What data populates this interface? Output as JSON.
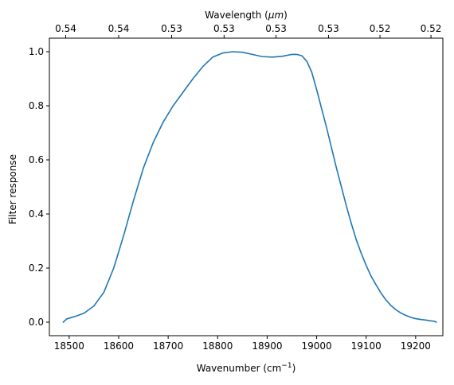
{
  "chart_data": {
    "type": "line",
    "title": "",
    "xlabel": "Wavenumber (cm",
    "xlabel_sup": "−1",
    "xlabel_end": ")",
    "ylabel": "Filter response",
    "top_xlabel_prefix": "Wavelength (",
    "top_xlabel_unit": "μm",
    "top_xlabel_suffix": ")",
    "xlim": [
      18460,
      19255
    ],
    "ylim": [
      -0.05,
      1.05
    ],
    "grid": false,
    "legend": "none",
    "x_ticks": [
      {
        "value": 18500,
        "label": "18500"
      },
      {
        "value": 18600,
        "label": "18600"
      },
      {
        "value": 18700,
        "label": "18700"
      },
      {
        "value": 18800,
        "label": "18800"
      },
      {
        "value": 18900,
        "label": "18900"
      },
      {
        "value": 19000,
        "label": "19000"
      },
      {
        "value": 19100,
        "label": "19100"
      },
      {
        "value": 19200,
        "label": "19200"
      }
    ],
    "y_ticks": [
      {
        "value": 0.0,
        "label": "0.0"
      },
      {
        "value": 0.2,
        "label": "0.2"
      },
      {
        "value": 0.4,
        "label": "0.4"
      },
      {
        "value": 0.6,
        "label": "0.6"
      },
      {
        "value": 0.8,
        "label": "0.8"
      },
      {
        "value": 1.0,
        "label": "1.0"
      }
    ],
    "top_x_ticks": [
      {
        "value": 18493,
        "label": "0.54"
      },
      {
        "value": 18600,
        "label": "0.54"
      },
      {
        "value": 18707,
        "label": "0.53"
      },
      {
        "value": 18813,
        "label": "0.53"
      },
      {
        "value": 18918,
        "label": "0.53"
      },
      {
        "value": 19024,
        "label": "0.53"
      },
      {
        "value": 19128,
        "label": "0.52"
      },
      {
        "value": 19231,
        "label": "0.52"
      }
    ],
    "series": [
      {
        "color": "#1f77b4",
        "x": [
          18488,
          18495,
          18510,
          18530,
          18550,
          18570,
          18590,
          18610,
          18630,
          18650,
          18670,
          18690,
          18710,
          18730,
          18750,
          18770,
          18790,
          18810,
          18830,
          18850,
          18870,
          18890,
          18910,
          18930,
          18950,
          18960,
          18970,
          18980,
          18990,
          19000,
          19010,
          19020,
          19030,
          19040,
          19050,
          19060,
          19070,
          19080,
          19090,
          19100,
          19110,
          19120,
          19130,
          19140,
          19150,
          19160,
          19170,
          19180,
          19190,
          19200,
          19210,
          19220,
          19230,
          19238,
          19242
        ],
        "y": [
          0.0,
          0.012,
          0.02,
          0.033,
          0.06,
          0.11,
          0.2,
          0.32,
          0.45,
          0.57,
          0.665,
          0.74,
          0.8,
          0.85,
          0.9,
          0.945,
          0.98,
          0.995,
          1.0,
          0.998,
          0.99,
          0.982,
          0.98,
          0.983,
          0.99,
          0.99,
          0.985,
          0.965,
          0.925,
          0.86,
          0.79,
          0.72,
          0.645,
          0.57,
          0.5,
          0.43,
          0.365,
          0.305,
          0.255,
          0.21,
          0.17,
          0.138,
          0.108,
          0.082,
          0.062,
          0.046,
          0.034,
          0.025,
          0.018,
          0.013,
          0.01,
          0.008,
          0.005,
          0.003,
          0.0
        ]
      }
    ]
  }
}
